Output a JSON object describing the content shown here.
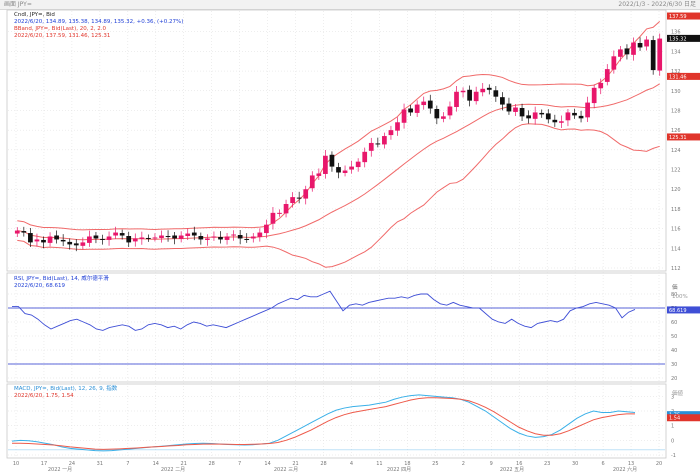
{
  "topbar": {
    "left_text": "画面  JPY=",
    "right_text": "2022/1/3 - 2022/6/30  日足"
  },
  "colors": {
    "candle_up": "#e8176b",
    "candle_down": "#111111",
    "bollinger": "#f06a6a",
    "rsi": "#3f4fd6",
    "rsi_levels": "#2233cc",
    "macd": "#3ab0e8",
    "signal": "#ee5a4a",
    "grid": "#dcdcdc"
  },
  "main": {
    "label1": "Cndl, JPY=, Bid",
    "label2": "2022/6/20, 134.89, 135.38, 134.89, 135.32, +0.36, (+0.27%)",
    "label3": "BBand, JPY=, Bid(Last), 20, 2, 2.0",
    "label4": "2022/6/20, 137.59, 131.46, 125.31",
    "price_badges": [
      {
        "value": "137.59",
        "color": "red"
      },
      {
        "value": "135.32",
        "color": "black"
      },
      {
        "value": "131.46",
        "color": "red"
      },
      {
        "value": "125.31",
        "color": "red"
      }
    ],
    "y_ticks": [
      "136",
      "134",
      "132",
      "130",
      "128",
      "126",
      "124",
      "122",
      "120",
      "118",
      "116",
      "114",
      "112"
    ]
  },
  "rsi_pane": {
    "label1": "RSI, JPY=, Bid(Last), 14, 威尔德平滑",
    "label2": "2022/6/20, 68.619",
    "current_badge": "68.619",
    "y_ticks": [
      "80",
      "70",
      "60",
      "50",
      "40",
      "30",
      "20"
    ],
    "top_label": "価",
    "unit_label": "100%"
  },
  "macd_pane": {
    "label1": "MACD, JPY=, Bid(Last), 12, 26, 9, 指数",
    "label2": "2022/6/20, 1.75, 1.54",
    "badges": [
      {
        "value": "1.75",
        "color": "blue"
      },
      {
        "value": "1.54",
        "color": "red"
      }
    ],
    "y_ticks": [
      "3",
      "2",
      "1",
      "0",
      "-1"
    ],
    "unit_label": "価値"
  },
  "x_axis": {
    "labels": [
      "10",
      "17",
      "24",
      "31",
      "7",
      "14",
      "21",
      "28",
      "7",
      "14",
      "21",
      "28",
      "4",
      "11",
      "18",
      "25",
      "2",
      "9",
      "16",
      "23",
      "30",
      "6",
      "13",
      "20"
    ],
    "months": [
      "2022 一月",
      "2022 二月",
      "2022 三月",
      "2022 四月",
      "2022 五月",
      "2022 六月"
    ]
  },
  "chart_data": [
    {
      "type": "candlestick",
      "title": "",
      "series": [
        {
          "name": "JPY=",
          "values": [
            115.8,
            115.6,
            114.6,
            114.9,
            114.6,
            115.2,
            114.9,
            114.7,
            114.4,
            114.3,
            114.6,
            115.2,
            115.0,
            114.9,
            115.2,
            115.6,
            115.3,
            114.6,
            115.0,
            115.1,
            115.0,
            115.1,
            115.3,
            115.2,
            115.0,
            115.3,
            115.5,
            115.3,
            114.9,
            115.0,
            115.2,
            114.9,
            115.2,
            115.4,
            115.0,
            114.9,
            115.2,
            115.6,
            116.4,
            117.6,
            117.6,
            118.5,
            119.2,
            119.1,
            120.0,
            121.4,
            121.6,
            123.4,
            122.3,
            121.7,
            121.9,
            122.3,
            122.8,
            123.8,
            124.7,
            124.6,
            125.4,
            126.0,
            126.8,
            128.1,
            127.8,
            128.6,
            128.9,
            128.2,
            127.2,
            127.4,
            128.4,
            129.9,
            130.0,
            129.0,
            129.9,
            130.2,
            130.1,
            129.4,
            128.6,
            127.9,
            128.3,
            127.4,
            127.2,
            127.8,
            127.6,
            127.1,
            126.8,
            126.9,
            127.8,
            127.5,
            127.2,
            128.8,
            130.3,
            130.8,
            132.2,
            133.5,
            134.2,
            133.7,
            134.9,
            134.4,
            135.2,
            132.1,
            135.3
          ]
        }
      ],
      "ylim": [
        112,
        138
      ]
    },
    {
      "type": "line",
      "title": "",
      "series": [
        {
          "name": "",
          "values": [
            71,
            71,
            66,
            65,
            62,
            58,
            55,
            57,
            59,
            61,
            62,
            60,
            58,
            55,
            54,
            56,
            57,
            58,
            57,
            54,
            55,
            58,
            59,
            58,
            56,
            57,
            55,
            58,
            60,
            59,
            57,
            58,
            57,
            56,
            58,
            60,
            62,
            64,
            66,
            68,
            70,
            73,
            75,
            77,
            76,
            79,
            78,
            78,
            80,
            82,
            75,
            68,
            72,
            73,
            72,
            74,
            75,
            76,
            77,
            77,
            78,
            77,
            79,
            80,
            80,
            76,
            73,
            72,
            74,
            72,
            71,
            70,
            70,
            66,
            62,
            60,
            59,
            62,
            59,
            57,
            56,
            59,
            60,
            61,
            60,
            62,
            68,
            70,
            71,
            73,
            74,
            73,
            72,
            70,
            63,
            67,
            69
          ]
        }
      ],
      "ylim": [
        20,
        90
      ]
    },
    {
      "type": "line",
      "title": "",
      "series": [
        {
          "name": "",
          "values": [
            -0.05,
            0.0,
            -0.03,
            -0.1,
            -0.2,
            -0.3,
            -0.45,
            -0.55,
            -0.6,
            -0.65,
            -0.7,
            -0.72,
            -0.7,
            -0.65,
            -0.6,
            -0.55,
            -0.5,
            -0.45,
            -0.4,
            -0.35,
            -0.3,
            -0.25,
            -0.22,
            -0.2,
            -0.22,
            -0.25,
            -0.28,
            -0.3,
            -0.32,
            -0.3,
            -0.25,
            -0.2,
            0.0,
            0.3,
            0.6,
            0.9,
            1.2,
            1.5,
            1.8,
            2.05,
            2.2,
            2.3,
            2.35,
            2.4,
            2.5,
            2.6,
            2.8,
            2.95,
            3.05,
            3.1,
            3.05,
            3.0,
            2.95,
            2.9,
            2.8,
            2.6,
            2.3,
            2.0,
            1.6,
            1.2,
            0.8,
            0.5,
            0.3,
            0.2,
            0.25,
            0.4,
            0.7,
            1.1,
            1.5,
            1.8,
            2.0,
            1.9,
            1.9,
            2.0,
            1.95,
            1.9
          ]
        },
        {
          "name": "",
          "values": [
            -0.2,
            -0.2,
            -0.22,
            -0.25,
            -0.28,
            -0.32,
            -0.38,
            -0.45,
            -0.5,
            -0.55,
            -0.6,
            -0.62,
            -0.6,
            -0.58,
            -0.55,
            -0.52,
            -0.48,
            -0.45,
            -0.42,
            -0.38,
            -0.35,
            -0.3,
            -0.28,
            -0.26,
            -0.25,
            -0.26,
            -0.27,
            -0.28,
            -0.28,
            -0.27,
            -0.25,
            -0.22,
            -0.15,
            0.0,
            0.2,
            0.45,
            0.7,
            1.0,
            1.3,
            1.55,
            1.75,
            1.9,
            2.0,
            2.1,
            2.2,
            2.3,
            2.45,
            2.6,
            2.75,
            2.85,
            2.9,
            2.9,
            2.88,
            2.85,
            2.8,
            2.7,
            2.5,
            2.25,
            1.95,
            1.6,
            1.25,
            0.9,
            0.65,
            0.45,
            0.35,
            0.35,
            0.45,
            0.65,
            0.9,
            1.15,
            1.4,
            1.55,
            1.65,
            1.75,
            1.8,
            1.8
          ]
        }
      ],
      "ylim": [
        -1,
        3.5
      ]
    }
  ]
}
